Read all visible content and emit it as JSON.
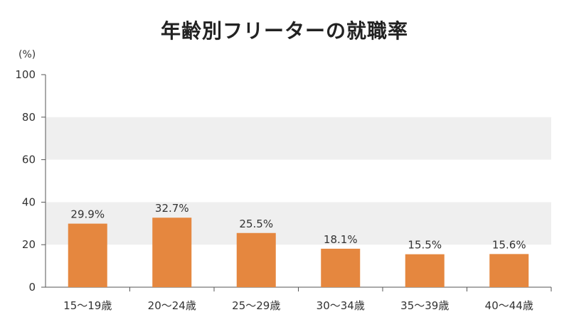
{
  "chart_data": {
    "type": "bar",
    "title": "年齢別フリーターの就職率",
    "y_unit": "(%)",
    "categories": [
      "15〜19歳",
      "20〜24歳",
      "25〜29歳",
      "30〜34歳",
      "35〜39歳",
      "40〜44歳"
    ],
    "values": [
      29.9,
      32.7,
      25.5,
      18.1,
      15.5,
      15.6
    ],
    "value_labels": [
      "29.9%",
      "32.7%",
      "25.5%",
      "18.1%",
      "15.5%",
      "15.6%"
    ],
    "ylim": [
      0,
      100
    ],
    "yticks": [
      0,
      20,
      40,
      60,
      80,
      100
    ],
    "grid": "alternating horizontal bands",
    "colors": {
      "bar": "#e5873f",
      "band": "#efefef",
      "axis": "#555555"
    }
  }
}
